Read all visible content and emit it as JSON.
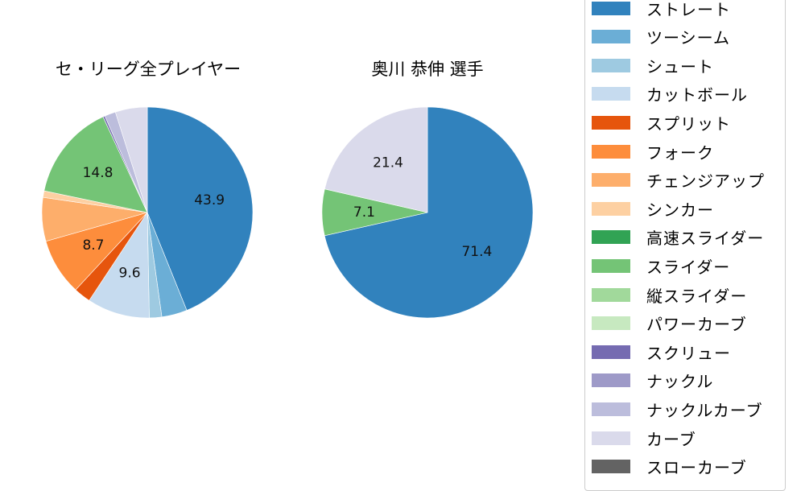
{
  "chart_data": [
    {
      "type": "pie",
      "title": "セ・リーグ全プレイヤー",
      "start_angle": 90,
      "direction": "clockwise",
      "categories": [
        "ストレート",
        "ツーシーム",
        "シュート",
        "カットボール",
        "スプリット",
        "フォーク",
        "チェンジアップ",
        "シンカー",
        "高速スライダー",
        "スライダー",
        "縦スライダー",
        "パワーカーブ",
        "スクリュー",
        "ナックル",
        "ナックルカーブ",
        "カーブ",
        "スローカーブ"
      ],
      "values": [
        43.9,
        3.9,
        1.9,
        9.6,
        2.6,
        8.7,
        6.7,
        1.0,
        0.0,
        14.8,
        0.0,
        0.0,
        0.3,
        0.0,
        1.7,
        4.9,
        0.0
      ],
      "labels_shown": [
        "43.9",
        "9.6",
        "8.7",
        "14.8"
      ]
    },
    {
      "type": "pie",
      "title": "奥川 恭伸  選手",
      "start_angle": 90,
      "direction": "clockwise",
      "categories": [
        "ストレート",
        "スライダー",
        "カーブ"
      ],
      "values": [
        71.4,
        7.1,
        21.4
      ],
      "labels_shown": [
        "71.4",
        "7.1",
        "21.4"
      ]
    }
  ],
  "legend": {
    "items": [
      {
        "label": "ストレート",
        "color": "#3182bd"
      },
      {
        "label": "ツーシーム",
        "color": "#6baed6"
      },
      {
        "label": "シュート",
        "color": "#9ecae1"
      },
      {
        "label": "カットボール",
        "color": "#c6dbef"
      },
      {
        "label": "スプリット",
        "color": "#e6550d"
      },
      {
        "label": "フォーク",
        "color": "#fd8d3c"
      },
      {
        "label": "チェンジアップ",
        "color": "#fdae6b"
      },
      {
        "label": "シンカー",
        "color": "#fdd0a2"
      },
      {
        "label": "高速スライダー",
        "color": "#31a354"
      },
      {
        "label": "スライダー",
        "color": "#74c476"
      },
      {
        "label": "縦スライダー",
        "color": "#a1d99b"
      },
      {
        "label": "パワーカーブ",
        "color": "#c7e9c0"
      },
      {
        "label": "スクリュー",
        "color": "#756bb1"
      },
      {
        "label": "ナックル",
        "color": "#9e9ac8"
      },
      {
        "label": "ナックルカーブ",
        "color": "#bcbddc"
      },
      {
        "label": "カーブ",
        "color": "#dadaeb"
      },
      {
        "label": "スローカーブ",
        "color": "#636363"
      }
    ]
  }
}
